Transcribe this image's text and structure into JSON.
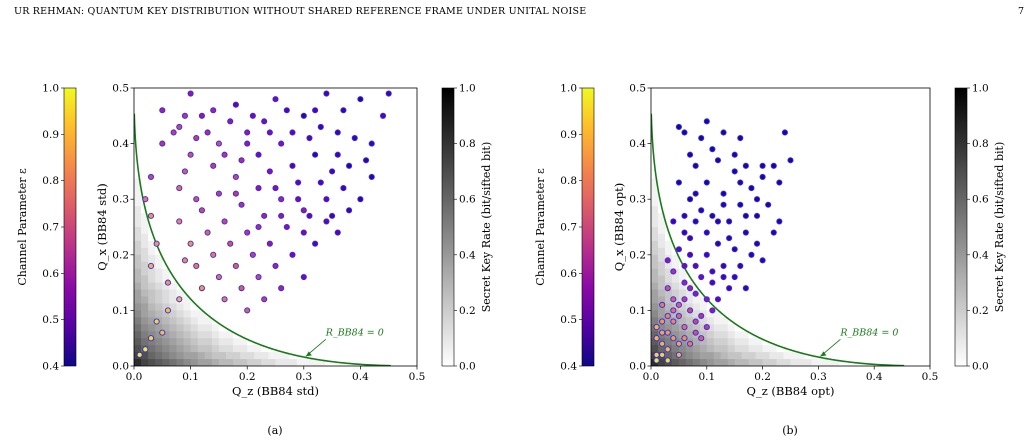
{
  "header": {
    "running_title": "UR REHMAN: QUANTUM KEY DISTRIBUTION WITHOUT SHARED REFERENCE FRAME UNDER UNITAL NOISE",
    "page_number": "7"
  },
  "colors": {
    "boundary_curve": "#1a7a1a",
    "point_edge": "#2a2aff",
    "colormap_epsilon": "plasma",
    "colormap_key_rate": "grays",
    "background": "#ffffff"
  },
  "chart_data": [
    {
      "type": "scatter",
      "caption": "(a)",
      "xlabel": "Q_z (BB84 std)",
      "ylabel": "Q_x (BB84 std)",
      "xlim": [
        0.0,
        0.5
      ],
      "ylim": [
        0.0,
        0.5
      ],
      "xticks": [
        "0.0",
        "0.1",
        "0.2",
        "0.3",
        "0.4",
        "0.5"
      ],
      "yticks": [
        "0.0",
        "0.1",
        "0.2",
        "0.3",
        "0.4",
        "0.5"
      ],
      "curve_label": "R_BB84 = 0",
      "left_colorbar": {
        "label": "Channel Parameter ε",
        "range": [
          0.4,
          1.0
        ],
        "ticks": [
          "0.4",
          "0.5",
          "0.6",
          "0.7",
          "0.8",
          "0.9",
          "1.0"
        ]
      },
      "right_colorbar": {
        "label": "Secret Key Rate (bit/sifted bit)",
        "range": [
          0.0,
          1.0
        ],
        "ticks": [
          "0.0",
          "0.2",
          "0.4",
          "0.6",
          "0.8",
          "1.0"
        ]
      },
      "points": [
        [
          0.3,
          0.45,
          0.45
        ],
        [
          0.34,
          0.49,
          0.48
        ],
        [
          0.4,
          0.48,
          0.43
        ],
        [
          0.45,
          0.49,
          0.47
        ],
        [
          0.25,
          0.48,
          0.55
        ],
        [
          0.18,
          0.47,
          0.52
        ],
        [
          0.1,
          0.49,
          0.6
        ],
        [
          0.05,
          0.46,
          0.62
        ],
        [
          0.03,
          0.34,
          0.7
        ],
        [
          0.02,
          0.3,
          0.8
        ],
        [
          0.03,
          0.27,
          0.85
        ],
        [
          0.05,
          0.4,
          0.66
        ],
        [
          0.08,
          0.43,
          0.7
        ],
        [
          0.12,
          0.45,
          0.6
        ],
        [
          0.15,
          0.4,
          0.72
        ],
        [
          0.2,
          0.42,
          0.6
        ],
        [
          0.22,
          0.38,
          0.55
        ],
        [
          0.26,
          0.4,
          0.58
        ],
        [
          0.28,
          0.36,
          0.5
        ],
        [
          0.32,
          0.38,
          0.45
        ],
        [
          0.36,
          0.42,
          0.47
        ],
        [
          0.38,
          0.36,
          0.44
        ],
        [
          0.42,
          0.4,
          0.46
        ],
        [
          0.44,
          0.45,
          0.5
        ],
        [
          0.34,
          0.3,
          0.52
        ],
        [
          0.3,
          0.28,
          0.6
        ],
        [
          0.26,
          0.3,
          0.62
        ],
        [
          0.22,
          0.32,
          0.6
        ],
        [
          0.18,
          0.34,
          0.7
        ],
        [
          0.14,
          0.36,
          0.68
        ],
        [
          0.1,
          0.38,
          0.72
        ],
        [
          0.08,
          0.32,
          0.78
        ],
        [
          0.12,
          0.28,
          0.7
        ],
        [
          0.16,
          0.26,
          0.7
        ],
        [
          0.2,
          0.24,
          0.66
        ],
        [
          0.24,
          0.22,
          0.6
        ],
        [
          0.28,
          0.2,
          0.55
        ],
        [
          0.32,
          0.22,
          0.5
        ],
        [
          0.36,
          0.24,
          0.5
        ],
        [
          0.4,
          0.3,
          0.45
        ],
        [
          0.42,
          0.34,
          0.44
        ],
        [
          0.38,
          0.28,
          0.47
        ],
        [
          0.3,
          0.16,
          0.55
        ],
        [
          0.26,
          0.14,
          0.62
        ],
        [
          0.22,
          0.16,
          0.7
        ],
        [
          0.18,
          0.18,
          0.75
        ],
        [
          0.14,
          0.2,
          0.8
        ],
        [
          0.1,
          0.22,
          0.85
        ],
        [
          0.08,
          0.26,
          0.82
        ],
        [
          0.12,
          0.14,
          0.85
        ],
        [
          0.16,
          0.12,
          0.8
        ],
        [
          0.2,
          0.1,
          0.75
        ],
        [
          0.08,
          0.12,
          0.9
        ],
        [
          0.06,
          0.1,
          0.92
        ],
        [
          0.04,
          0.08,
          0.95
        ],
        [
          0.03,
          0.05,
          0.95
        ],
        [
          0.02,
          0.03,
          0.98
        ],
        [
          0.01,
          0.02,
          0.98
        ],
        [
          0.05,
          0.06,
          0.92
        ],
        [
          0.06,
          0.15,
          0.85
        ],
        [
          0.03,
          0.18,
          0.9
        ],
        [
          0.04,
          0.22,
          0.85
        ],
        [
          0.21,
          0.45,
          0.55
        ],
        [
          0.27,
          0.46,
          0.5
        ],
        [
          0.33,
          0.43,
          0.47
        ],
        [
          0.37,
          0.46,
          0.46
        ],
        [
          0.24,
          0.35,
          0.58
        ],
        [
          0.29,
          0.33,
          0.52
        ],
        [
          0.35,
          0.35,
          0.48
        ],
        [
          0.19,
          0.29,
          0.65
        ],
        [
          0.23,
          0.27,
          0.62
        ],
        [
          0.27,
          0.25,
          0.58
        ],
        [
          0.31,
          0.27,
          0.52
        ],
        [
          0.35,
          0.27,
          0.48
        ],
        [
          0.17,
          0.22,
          0.72
        ],
        [
          0.21,
          0.2,
          0.68
        ],
        [
          0.25,
          0.18,
          0.62
        ],
        [
          0.13,
          0.24,
          0.76
        ],
        [
          0.11,
          0.3,
          0.72
        ],
        [
          0.15,
          0.31,
          0.68
        ],
        [
          0.09,
          0.35,
          0.74
        ],
        [
          0.07,
          0.42,
          0.68
        ],
        [
          0.13,
          0.42,
          0.64
        ],
        [
          0.17,
          0.44,
          0.6
        ],
        [
          0.23,
          0.44,
          0.56
        ],
        [
          0.31,
          0.41,
          0.5
        ],
        [
          0.39,
          0.41,
          0.46
        ],
        [
          0.41,
          0.37,
          0.45
        ],
        [
          0.37,
          0.32,
          0.47
        ],
        [
          0.33,
          0.33,
          0.5
        ],
        [
          0.29,
          0.3,
          0.55
        ],
        [
          0.25,
          0.32,
          0.58
        ],
        [
          0.19,
          0.37,
          0.64
        ],
        [
          0.16,
          0.38,
          0.66
        ],
        [
          0.14,
          0.46,
          0.62
        ],
        [
          0.11,
          0.41,
          0.68
        ],
        [
          0.09,
          0.45,
          0.66
        ],
        [
          0.28,
          0.42,
          0.52
        ],
        [
          0.32,
          0.46,
          0.49
        ],
        [
          0.36,
          0.38,
          0.47
        ],
        [
          0.2,
          0.4,
          0.6
        ],
        [
          0.24,
          0.42,
          0.57
        ],
        [
          0.18,
          0.31,
          0.67
        ],
        [
          0.22,
          0.25,
          0.64
        ],
        [
          0.26,
          0.27,
          0.6
        ],
        [
          0.3,
          0.24,
          0.56
        ],
        [
          0.34,
          0.26,
          0.51
        ],
        [
          0.15,
          0.16,
          0.78
        ],
        [
          0.19,
          0.14,
          0.74
        ],
        [
          0.23,
          0.12,
          0.68
        ],
        [
          0.11,
          0.18,
          0.8
        ],
        [
          0.09,
          0.19,
          0.84
        ]
      ]
    },
    {
      "type": "scatter",
      "caption": "(b)",
      "xlabel": "Q_z (BB84 opt)",
      "ylabel": "Q_x (BB84 opt)",
      "xlim": [
        0.0,
        0.5
      ],
      "ylim": [
        0.0,
        0.5
      ],
      "xticks": [
        "0.0",
        "0.1",
        "0.2",
        "0.3",
        "0.4",
        "0.5"
      ],
      "yticks": [
        "0.0",
        "0.1",
        "0.2",
        "0.3",
        "0.4",
        "0.5"
      ],
      "curve_label": "R_BB84 = 0",
      "left_colorbar": {
        "label": "Channel Parameter ε",
        "range": [
          0.4,
          1.0
        ],
        "ticks": [
          "0.4",
          "0.5",
          "0.6",
          "0.7",
          "0.8",
          "0.9",
          "1.0"
        ]
      },
      "right_colorbar": {
        "label": "Secret Key Rate (bit/sifted bit)",
        "range": [
          0.0,
          1.0
        ],
        "ticks": [
          "0.0",
          "0.2",
          "0.4",
          "0.6",
          "0.8",
          "1.0"
        ]
      },
      "points": [
        [
          0.1,
          0.44,
          0.42
        ],
        [
          0.05,
          0.43,
          0.42
        ],
        [
          0.06,
          0.42,
          0.42
        ],
        [
          0.09,
          0.41,
          0.42
        ],
        [
          0.13,
          0.42,
          0.42
        ],
        [
          0.16,
          0.41,
          0.42
        ],
        [
          0.24,
          0.42,
          0.42
        ],
        [
          0.25,
          0.37,
          0.42
        ],
        [
          0.22,
          0.36,
          0.42
        ],
        [
          0.2,
          0.34,
          0.42
        ],
        [
          0.18,
          0.32,
          0.42
        ],
        [
          0.15,
          0.35,
          0.42
        ],
        [
          0.12,
          0.37,
          0.42
        ],
        [
          0.08,
          0.36,
          0.42
        ],
        [
          0.1,
          0.33,
          0.42
        ],
        [
          0.13,
          0.31,
          0.42
        ],
        [
          0.07,
          0.3,
          0.42
        ],
        [
          0.05,
          0.33,
          0.42
        ],
        [
          0.16,
          0.29,
          0.43
        ],
        [
          0.19,
          0.27,
          0.43
        ],
        [
          0.22,
          0.24,
          0.43
        ],
        [
          0.23,
          0.26,
          0.43
        ],
        [
          0.17,
          0.24,
          0.44
        ],
        [
          0.14,
          0.26,
          0.44
        ],
        [
          0.11,
          0.27,
          0.44
        ],
        [
          0.08,
          0.26,
          0.45
        ],
        [
          0.06,
          0.24,
          0.46
        ],
        [
          0.12,
          0.22,
          0.45
        ],
        [
          0.15,
          0.21,
          0.45
        ],
        [
          0.18,
          0.2,
          0.44
        ],
        [
          0.2,
          0.19,
          0.44
        ],
        [
          0.16,
          0.18,
          0.46
        ],
        [
          0.13,
          0.18,
          0.47
        ],
        [
          0.1,
          0.2,
          0.48
        ],
        [
          0.07,
          0.2,
          0.5
        ],
        [
          0.05,
          0.21,
          0.52
        ],
        [
          0.09,
          0.16,
          0.55
        ],
        [
          0.11,
          0.15,
          0.5
        ],
        [
          0.14,
          0.14,
          0.48
        ],
        [
          0.17,
          0.14,
          0.46
        ],
        [
          0.12,
          0.12,
          0.52
        ],
        [
          0.08,
          0.13,
          0.6
        ],
        [
          0.06,
          0.15,
          0.62
        ],
        [
          0.04,
          0.17,
          0.65
        ],
        [
          0.03,
          0.14,
          0.72
        ],
        [
          0.05,
          0.11,
          0.75
        ],
        [
          0.07,
          0.1,
          0.7
        ],
        [
          0.09,
          0.09,
          0.66
        ],
        [
          0.11,
          0.1,
          0.6
        ],
        [
          0.04,
          0.08,
          0.82
        ],
        [
          0.03,
          0.06,
          0.86
        ],
        [
          0.02,
          0.04,
          0.9
        ],
        [
          0.01,
          0.02,
          0.95
        ],
        [
          0.02,
          0.08,
          0.85
        ],
        [
          0.06,
          0.07,
          0.78
        ],
        [
          0.08,
          0.06,
          0.72
        ],
        [
          0.1,
          0.07,
          0.68
        ],
        [
          0.05,
          0.04,
          0.88
        ],
        [
          0.03,
          0.03,
          0.92
        ],
        [
          0.07,
          0.04,
          0.8
        ],
        [
          0.01,
          0.05,
          0.9
        ],
        [
          0.02,
          0.11,
          0.8
        ],
        [
          0.04,
          0.12,
          0.74
        ],
        [
          0.06,
          0.12,
          0.68
        ],
        [
          0.15,
          0.38,
          0.42
        ],
        [
          0.17,
          0.36,
          0.42
        ],
        [
          0.11,
          0.39,
          0.42
        ],
        [
          0.07,
          0.38,
          0.42
        ],
        [
          0.19,
          0.3,
          0.43
        ],
        [
          0.21,
          0.29,
          0.43
        ],
        [
          0.09,
          0.28,
          0.44
        ],
        [
          0.13,
          0.29,
          0.44
        ],
        [
          0.06,
          0.27,
          0.45
        ],
        [
          0.04,
          0.26,
          0.47
        ],
        [
          0.07,
          0.23,
          0.47
        ],
        [
          0.1,
          0.24,
          0.46
        ],
        [
          0.14,
          0.23,
          0.45
        ],
        [
          0.19,
          0.22,
          0.44
        ],
        [
          0.17,
          0.27,
          0.43
        ],
        [
          0.08,
          0.18,
          0.52
        ],
        [
          0.11,
          0.17,
          0.5
        ],
        [
          0.13,
          0.16,
          0.48
        ],
        [
          0.15,
          0.16,
          0.47
        ],
        [
          0.06,
          0.18,
          0.55
        ],
        [
          0.03,
          0.19,
          0.6
        ],
        [
          0.04,
          0.1,
          0.78
        ],
        [
          0.02,
          0.06,
          0.88
        ],
        [
          0.05,
          0.09,
          0.76
        ],
        [
          0.08,
          0.08,
          0.7
        ],
        [
          0.1,
          0.12,
          0.6
        ],
        [
          0.07,
          0.14,
          0.62
        ],
        [
          0.03,
          0.09,
          0.82
        ],
        [
          0.01,
          0.07,
          0.9
        ],
        [
          0.06,
          0.05,
          0.84
        ],
        [
          0.09,
          0.05,
          0.74
        ],
        [
          0.04,
          0.05,
          0.86
        ],
        [
          0.02,
          0.02,
          0.95
        ],
        [
          0.03,
          0.01,
          0.96
        ],
        [
          0.05,
          0.02,
          0.9
        ],
        [
          0.01,
          0.01,
          0.98
        ],
        [
          0.12,
          0.26,
          0.44
        ],
        [
          0.16,
          0.33,
          0.43
        ],
        [
          0.2,
          0.36,
          0.42
        ],
        [
          0.23,
          0.33,
          0.42
        ],
        [
          0.08,
          0.31,
          0.44
        ]
      ]
    }
  ]
}
